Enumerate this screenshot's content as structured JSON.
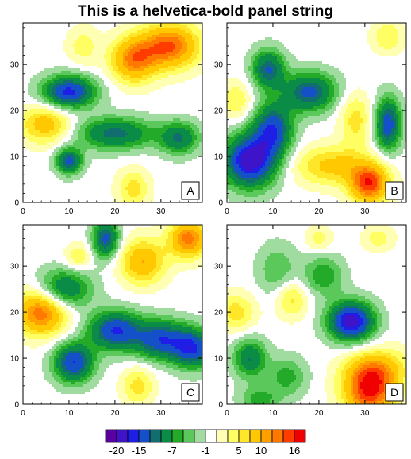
{
  "figure": {
    "title": "This is a helvetica-bold panel string"
  },
  "chart_data": {
    "type": "heatmap",
    "title": "This is a helvetica-bold panel string",
    "xlabel": "",
    "ylabel": "",
    "xlim": [
      0,
      39
    ],
    "ylim": [
      0,
      39
    ],
    "x_ticks": [
      0,
      10,
      20,
      30
    ],
    "y_ticks": [
      0,
      10,
      20,
      30
    ],
    "grid": false,
    "levels": [
      -22,
      -20,
      -17,
      -15,
      -12,
      -10,
      -7,
      -5,
      -3,
      -1,
      1,
      3,
      5,
      7,
      10,
      12,
      14,
      16
    ],
    "level_labels": [
      "-20",
      "-15",
      "-7",
      "-1",
      "5",
      "10",
      "16"
    ],
    "level_colors": [
      "#5a00a0",
      "#3f14c8",
      "#1e1ee6",
      "#1450c8",
      "#126e6e",
      "#0a8c46",
      "#23aa28",
      "#5ac85a",
      "#a0dca0",
      "#ffffff",
      "#ffffb4",
      "#ffff64",
      "#ffe628",
      "#ffc800",
      "#ffa000",
      "#ff7800",
      "#ff3c00",
      "#f00000"
    ],
    "panels": [
      {
        "label": "A",
        "blobs": [
          {
            "x": 32,
            "y": 34,
            "a": 14,
            "sx": 4.5,
            "sy": 3.5
          },
          {
            "x": 24,
            "y": 31,
            "a": 12,
            "sx": 3.5,
            "sy": 3.5
          },
          {
            "x": 13,
            "y": 34,
            "a": 4,
            "sx": 2.5,
            "sy": 3
          },
          {
            "x": 5,
            "y": 17,
            "a": 9,
            "sx": 4,
            "sy": 3
          },
          {
            "x": 24,
            "y": 3,
            "a": 6,
            "sx": 2.5,
            "sy": 3
          },
          {
            "x": 10,
            "y": 24,
            "a": -16,
            "sx": 4,
            "sy": 2.5
          },
          {
            "x": 10,
            "y": 9,
            "a": -13,
            "sx": 2,
            "sy": 2
          },
          {
            "x": 20,
            "y": 15,
            "a": -11,
            "sx": 6,
            "sy": 2.5
          },
          {
            "x": 34,
            "y": 14,
            "a": -10,
            "sx": 3,
            "sy": 2.5
          }
        ]
      },
      {
        "label": "B",
        "blobs": [
          {
            "x": 31,
            "y": 4,
            "a": 15,
            "sx": 3,
            "sy": 3
          },
          {
            "x": 23,
            "y": 8,
            "a": 8,
            "sx": 6,
            "sy": 3
          },
          {
            "x": 28,
            "y": 18,
            "a": 6,
            "sx": 2.5,
            "sy": 4
          },
          {
            "x": 2,
            "y": 22,
            "a": 5,
            "sx": 2.5,
            "sy": 3
          },
          {
            "x": 35,
            "y": 36,
            "a": 5,
            "sx": 2.5,
            "sy": 2.5
          },
          {
            "x": 5,
            "y": 9,
            "a": -19,
            "sx": 4,
            "sy": 4
          },
          {
            "x": 10,
            "y": 16,
            "a": -14,
            "sx": 3,
            "sy": 4
          },
          {
            "x": 18,
            "y": 24,
            "a": -13,
            "sx": 4,
            "sy": 3
          },
          {
            "x": 9,
            "y": 29,
            "a": -12,
            "sx": 2.5,
            "sy": 3
          },
          {
            "x": 35,
            "y": 17,
            "a": -14,
            "sx": 2,
            "sy": 4
          }
        ]
      },
      {
        "label": "C",
        "blobs": [
          {
            "x": 4,
            "y": 20,
            "a": 14,
            "sx": 4,
            "sy": 3.5
          },
          {
            "x": 26,
            "y": 31,
            "a": 10,
            "sx": 3.5,
            "sy": 3.5
          },
          {
            "x": 36,
            "y": 36,
            "a": 13,
            "sx": 3,
            "sy": 3
          },
          {
            "x": 25,
            "y": 4,
            "a": 6,
            "sx": 2.5,
            "sy": 3
          },
          {
            "x": 12,
            "y": 32,
            "a": 5,
            "sx": 2,
            "sy": 2
          },
          {
            "x": 11,
            "y": 9,
            "a": -15,
            "sx": 3,
            "sy": 3
          },
          {
            "x": 20,
            "y": 16,
            "a": -15,
            "sx": 4,
            "sy": 3
          },
          {
            "x": 30,
            "y": 14,
            "a": -14,
            "sx": 4,
            "sy": 3
          },
          {
            "x": 37,
            "y": 12,
            "a": -14,
            "sx": 3,
            "sy": 3
          },
          {
            "x": 18,
            "y": 36,
            "a": -13,
            "sx": 2,
            "sy": 3
          },
          {
            "x": 9,
            "y": 25,
            "a": -11,
            "sx": 4,
            "sy": 3
          }
        ]
      },
      {
        "label": "D",
        "blobs": [
          {
            "x": 31,
            "y": 3,
            "a": 16,
            "sx": 4,
            "sy": 4
          },
          {
            "x": 33,
            "y": 8,
            "a": 7,
            "sx": 5,
            "sy": 3
          },
          {
            "x": 2,
            "y": 20,
            "a": 6,
            "sx": 3,
            "sy": 3
          },
          {
            "x": 14,
            "y": 23,
            "a": 6,
            "sx": 2.5,
            "sy": 3
          },
          {
            "x": 20,
            "y": 36,
            "a": 4,
            "sx": 2,
            "sy": 2
          },
          {
            "x": 33,
            "y": 36,
            "a": 4,
            "sx": 2.5,
            "sy": 2
          },
          {
            "x": 27,
            "y": 18,
            "a": -19,
            "sx": 3.5,
            "sy": 3
          },
          {
            "x": 5,
            "y": 10,
            "a": -10,
            "sx": 2.5,
            "sy": 3
          },
          {
            "x": 21,
            "y": 28,
            "a": -7,
            "sx": 3,
            "sy": 3
          },
          {
            "x": 11,
            "y": 29,
            "a": -5,
            "sx": 3,
            "sy": 4
          },
          {
            "x": 13,
            "y": 6,
            "a": -6,
            "sx": 3,
            "sy": 3
          },
          {
            "x": 7,
            "y": 1,
            "a": -6,
            "sx": 3,
            "sy": 2
          }
        ]
      }
    ]
  }
}
